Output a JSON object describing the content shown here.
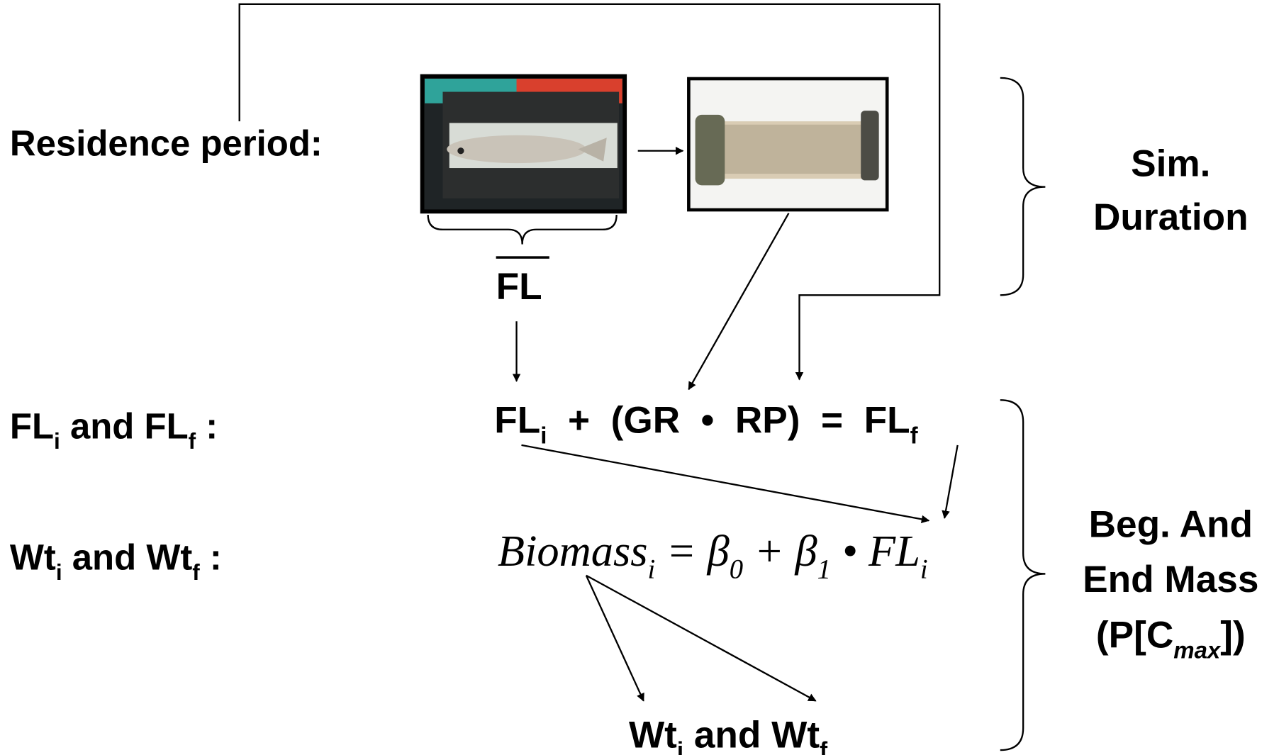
{
  "labels": {
    "residence": [
      {
        "text": "Residence period:"
      }
    ],
    "fl_bar": [
      {
        "text": "FL"
      }
    ],
    "fl_row": [
      {
        "text": "FL"
      },
      {
        "text": "i",
        "sub": true
      },
      {
        "text": " and "
      },
      {
        "text": "FL"
      },
      {
        "text": "f",
        "sub": true
      },
      {
        "text": " :"
      }
    ],
    "wt_row": [
      {
        "text": "Wt"
      },
      {
        "text": "i",
        "sub": true
      },
      {
        "text": " and "
      },
      {
        "text": "Wt"
      },
      {
        "text": "f",
        "sub": true
      },
      {
        "text": " :"
      }
    ],
    "growth_equation": [
      {
        "text": "FL"
      },
      {
        "text": "i",
        "sub": true
      },
      {
        "text": "  +  (GR  •  RP)  =  "
      },
      {
        "text": "FL"
      },
      {
        "text": "f",
        "sub": true
      }
    ],
    "biomass_equation": [
      {
        "text": "Biomass"
      },
      {
        "text": "i",
        "sub": true
      },
      {
        "text": " = "
      },
      {
        "text": "β"
      },
      {
        "text": "0",
        "sub": true
      },
      {
        "text": " + "
      },
      {
        "text": "β"
      },
      {
        "text": "1",
        "sub": true
      },
      {
        "text": " • "
      },
      {
        "text": "FL"
      },
      {
        "text": "i",
        "sub": true
      }
    ],
    "wt_result": [
      {
        "text": "Wt"
      },
      {
        "text": "i",
        "sub": true
      },
      {
        "text": " and "
      },
      {
        "text": "Wt"
      },
      {
        "text": "f",
        "sub": true
      }
    ],
    "sim_1": [
      {
        "text": "Sim."
      }
    ],
    "sim_2": [
      {
        "text": "Duration"
      }
    ],
    "mass_1": [
      {
        "text": "Beg. And"
      }
    ],
    "mass_2": [
      {
        "text": "End Mass"
      }
    ],
    "mass_3": [
      {
        "text": "(P[C"
      },
      {
        "text": "max",
        "sub": true,
        "italic": true
      },
      {
        "text": "])"
      }
    ]
  }
}
